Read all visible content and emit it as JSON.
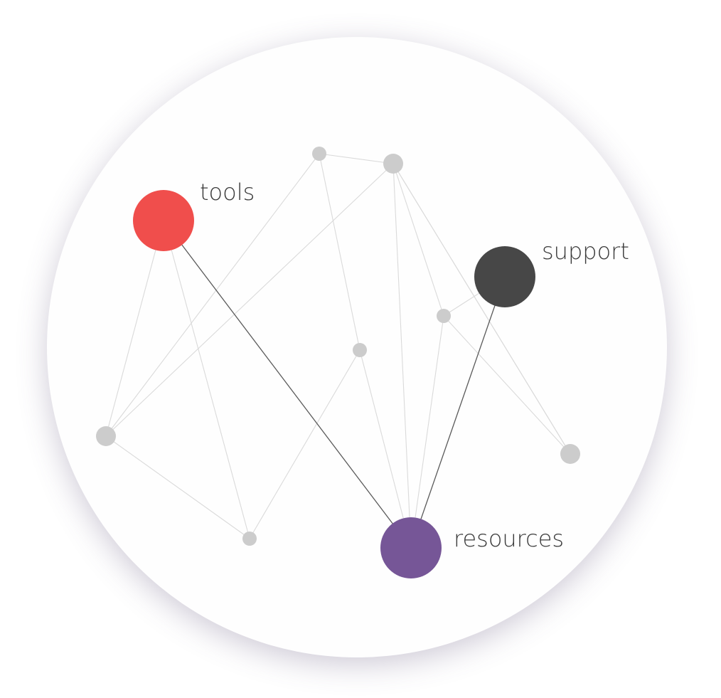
{
  "diagram": {
    "type": "network",
    "hubs": [
      {
        "id": "tools",
        "label": "tools",
        "color": "#f04e4c"
      },
      {
        "id": "support",
        "label": "support",
        "color": "#474747"
      },
      {
        "id": "resources",
        "label": "resources",
        "color": "#765697"
      }
    ],
    "colors": {
      "minor_node": "#cccccc",
      "minor_edge": "#dadada",
      "hub_edge": "#5a5a5a",
      "label_text": "#3a3a3a",
      "background": "#fefefe"
    },
    "minor_nodes": [
      "n1",
      "n2",
      "n3",
      "n4",
      "n5",
      "n6",
      "n7",
      "n8"
    ],
    "edges": [
      {
        "from": "n1",
        "to": "n2"
      },
      {
        "from": "n1",
        "to": "n3"
      },
      {
        "from": "n1",
        "to": "n4"
      },
      {
        "from": "n2",
        "to": "n4"
      },
      {
        "from": "n2",
        "to": "n5"
      },
      {
        "from": "n2",
        "to": "n6"
      },
      {
        "from": "n2",
        "to": "n7"
      },
      {
        "from": "n2",
        "to": "resources"
      },
      {
        "from": "tools",
        "to": "n4"
      },
      {
        "from": "tools",
        "to": "n8"
      },
      {
        "from": "n4",
        "to": "n8"
      },
      {
        "from": "n8",
        "to": "n3"
      },
      {
        "from": "n3",
        "to": "resources"
      },
      {
        "from": "n5",
        "to": "resources"
      },
      {
        "from": "n5",
        "to": "support"
      },
      {
        "from": "n5",
        "to": "n7"
      },
      {
        "from": "tools",
        "to": "resources",
        "emphasis": true
      },
      {
        "from": "support",
        "to": "resources",
        "emphasis": true
      }
    ]
  }
}
